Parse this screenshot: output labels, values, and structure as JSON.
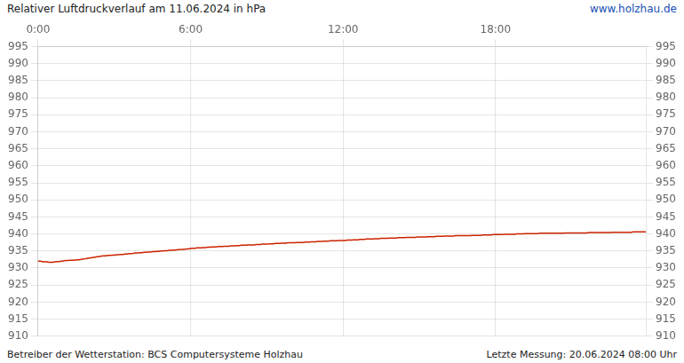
{
  "chart_data": {
    "type": "line",
    "title": "Relativer Luftdruckverlauf am 11.06.2024 in hPa",
    "annotations": [
      "www.holzhau.de",
      "Betreiber der Wetterstation: BCS Computersysteme Holzhau",
      "Letzte Messung: 20.06.2024 08:00 Uhr"
    ],
    "categories": [
      "0:00",
      null,
      null,
      null,
      null,
      null,
      null,
      null,
      null,
      null,
      null,
      null,
      null,
      null,
      null,
      null,
      null,
      null,
      null,
      null,
      null,
      null,
      null,
      null,
      null,
      null,
      null,
      null,
      null,
      null,
      null,
      null,
      null,
      null,
      null,
      null,
      null,
      null,
      null,
      null,
      null,
      null,
      null,
      null,
      null,
      null,
      null,
      null,
      null,
      null,
      null,
      null,
      null,
      null,
      null,
      null,
      null,
      null,
      null,
      null,
      null,
      null,
      null,
      null,
      null,
      null,
      null,
      null,
      null,
      null,
      null,
      null,
      "6:00",
      null,
      null,
      null,
      null,
      null,
      null,
      null,
      null,
      null,
      null,
      null,
      null,
      null,
      null,
      null,
      null,
      null,
      null,
      null,
      null,
      null,
      null,
      null,
      null,
      null,
      null,
      null,
      null,
      null,
      null,
      null,
      null,
      null,
      null,
      null,
      null,
      null,
      null,
      null,
      null,
      null,
      null,
      null,
      null,
      null,
      null,
      null,
      null,
      null,
      null,
      null,
      null,
      null,
      null,
      null,
      null,
      null,
      null,
      null,
      null,
      null,
      null,
      null,
      null,
      null,
      null,
      null,
      null,
      null,
      null,
      null,
      "12:00",
      null,
      null,
      null,
      null,
      null,
      null,
      null,
      null,
      null,
      null,
      null,
      null,
      null,
      null,
      null,
      null,
      null,
      null,
      null,
      null,
      null,
      null,
      null,
      null,
      null,
      null,
      null,
      null,
      null,
      null,
      null,
      null,
      null,
      null,
      null,
      null,
      null,
      null,
      null,
      null,
      null,
      null,
      null,
      null,
      null,
      null,
      null,
      null,
      null,
      null,
      null,
      null,
      null,
      null,
      null,
      null,
      null,
      null,
      null,
      null,
      null,
      null,
      null,
      null,
      null,
      null,
      null,
      null,
      null,
      null,
      null,
      "18:00",
      null,
      null,
      null,
      null,
      null,
      null,
      null,
      null,
      null,
      null,
      null,
      null,
      null,
      null,
      null,
      null,
      null,
      null,
      null,
      null,
      null,
      null,
      null,
      null,
      null,
      null,
      null,
      null,
      null,
      null,
      null,
      null,
      null,
      null,
      null,
      null,
      null,
      null,
      null,
      null,
      null,
      null,
      null,
      null,
      null,
      null,
      null,
      null,
      null,
      null,
      null,
      null,
      null,
      null,
      null,
      null,
      null,
      null,
      null,
      null,
      null,
      null,
      null,
      null,
      null,
      null,
      null,
      null,
      null,
      null,
      null
    ],
    "values": [
      932.0,
      932.0,
      931.9,
      931.8,
      931.8,
      931.7,
      931.7,
      931.7,
      931.8,
      931.9,
      931.9,
      932.0,
      932.1,
      932.2,
      932.2,
      932.3,
      932.3,
      932.3,
      932.4,
      932.4,
      932.5,
      932.6,
      932.7,
      932.8,
      932.9,
      933.0,
      933.1,
      933.2,
      933.3,
      933.4,
      933.5,
      933.6,
      933.6,
      933.7,
      933.7,
      933.8,
      933.8,
      933.9,
      933.9,
      934.0,
      934.0,
      934.1,
      934.1,
      934.2,
      934.2,
      934.3,
      934.4,
      934.4,
      934.5,
      934.5,
      934.6,
      934.6,
      934.7,
      934.7,
      934.8,
      934.8,
      934.9,
      934.9,
      935.0,
      935.0,
      935.1,
      935.1,
      935.2,
      935.2,
      935.3,
      935.3,
      935.4,
      935.4,
      935.5,
      935.5,
      935.6,
      935.6,
      935.7,
      935.8,
      935.8,
      935.9,
      935.9,
      935.9,
      936.0,
      936.0,
      936.1,
      936.1,
      936.2,
      936.2,
      936.2,
      936.3,
      936.3,
      936.3,
      936.4,
      936.4,
      936.4,
      936.5,
      936.5,
      936.5,
      936.6,
      936.6,
      936.7,
      936.7,
      936.7,
      936.8,
      936.8,
      936.8,
      936.8,
      936.9,
      936.9,
      936.9,
      937.0,
      937.0,
      937.0,
      937.1,
      937.1,
      937.1,
      937.2,
      937.2,
      937.2,
      937.3,
      937.3,
      937.3,
      937.4,
      937.4,
      937.4,
      937.4,
      937.5,
      937.5,
      937.5,
      937.5,
      937.6,
      937.6,
      937.6,
      937.7,
      937.7,
      937.7,
      937.8,
      937.8,
      937.8,
      937.9,
      937.9,
      937.9,
      938.0,
      938.0,
      938.0,
      938.0,
      938.1,
      938.1,
      938.1,
      938.1,
      938.2,
      938.2,
      938.2,
      938.3,
      938.3,
      938.3,
      938.4,
      938.4,
      938.4,
      938.5,
      938.5,
      938.5,
      938.5,
      938.6,
      938.6,
      938.6,
      938.7,
      938.7,
      938.7,
      938.7,
      938.8,
      938.8,
      938.8,
      938.8,
      938.9,
      938.9,
      938.9,
      938.9,
      939.0,
      939.0,
      939.0,
      939.0,
      939.0,
      939.1,
      939.1,
      939.1,
      939.1,
      939.1,
      939.2,
      939.2,
      939.2,
      939.2,
      939.3,
      939.3,
      939.3,
      939.3,
      939.4,
      939.4,
      939.4,
      939.4,
      939.4,
      939.5,
      939.5,
      939.5,
      939.5,
      939.5,
      939.5,
      939.5,
      939.5,
      939.6,
      939.6,
      939.6,
      939.6,
      939.6,
      939.7,
      939.7,
      939.7,
      939.7,
      939.7,
      939.8,
      939.8,
      939.8,
      939.8,
      939.8,
      939.9,
      939.9,
      939.9,
      939.9,
      939.9,
      939.9,
      940.0,
      940.0,
      940.0,
      940.0,
      940.1,
      940.1,
      940.1,
      940.1,
      940.1,
      940.1,
      940.1,
      940.2,
      940.2,
      940.2,
      940.2,
      940.2,
      940.2,
      940.2,
      940.2,
      940.2,
      940.2,
      940.2,
      940.2,
      940.3,
      940.3,
      940.3,
      940.3,
      940.3,
      940.3,
      940.3,
      940.3,
      940.3,
      940.3,
      940.3,
      940.4,
      940.4,
      940.4,
      940.4,
      940.4,
      940.4,
      940.4,
      940.4,
      940.4,
      940.4,
      940.4,
      940.5,
      940.5,
      940.5,
      940.5,
      940.5,
      940.5,
      940.5,
      940.5,
      940.5,
      940.5,
      940.6,
      940.6,
      940.6,
      940.6,
      940.6,
      940.6,
      940.6
    ],
    "color": "#cc2200",
    "ylim": [
      910,
      995
    ],
    "yticks": [
      910,
      915,
      920,
      925,
      930,
      935,
      940,
      945,
      950,
      955,
      960,
      965,
      970,
      975,
      980,
      985,
      990,
      995
    ],
    "y2lim": [
      910,
      995
    ],
    "y2ticks": [
      910,
      915,
      920,
      925,
      930,
      935,
      940,
      945,
      950,
      955,
      960,
      965,
      970,
      975,
      980,
      985,
      990,
      995
    ],
    "grid": true
  }
}
